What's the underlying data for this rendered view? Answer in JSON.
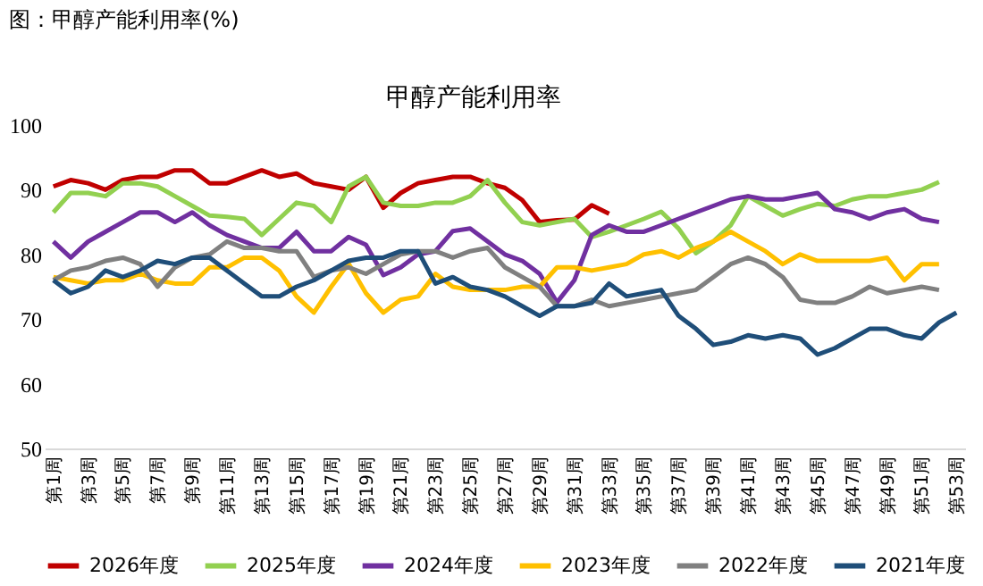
{
  "chart_data": {
    "type": "line",
    "title": "图：甲醇产能利用率(%)",
    "subtitle": "甲醇产能利用率",
    "categories": [
      "第1周",
      null,
      "第3周",
      null,
      "第5周",
      null,
      "第7周",
      null,
      "第9周",
      null,
      "第11周",
      null,
      "第13周",
      null,
      "第15周",
      null,
      "第17周",
      null,
      "第19周",
      null,
      "第21周",
      null,
      "第23周",
      null,
      "第25周",
      null,
      "第27周",
      null,
      "第29周",
      null,
      "第31周",
      null,
      "第33周",
      null,
      "第35周",
      null,
      "第37周",
      null,
      "第39周",
      null,
      "第41周",
      null,
      "第43周",
      null,
      "第45周",
      null,
      "第47周",
      null,
      "第49周",
      null,
      "第51周",
      null,
      "第53周"
    ],
    "ylim": [
      50,
      100
    ],
    "yticks": [
      50,
      60,
      70,
      80,
      90,
      100
    ],
    "grid": false,
    "legend": "bottom",
    "line_style": "solid",
    "marker": "none",
    "series": [
      {
        "name": "2026年度",
        "color": "#c00000",
        "values": [
          90.5,
          91.5,
          91,
          90,
          91.5,
          92,
          92,
          93,
          93,
          91,
          91,
          92,
          93,
          92,
          92.5,
          91,
          90.5,
          90,
          92,
          87.2,
          89.5,
          91,
          91.5,
          92,
          92,
          91,
          90.3,
          88.4,
          85,
          85.3,
          85.4,
          87.6,
          86.3,
          null,
          null,
          null,
          null,
          null,
          null,
          null,
          null,
          null,
          null,
          null,
          null,
          null,
          null,
          null,
          null,
          null,
          null,
          null,
          null
        ]
      },
      {
        "name": "2025年度",
        "color": "#92d050",
        "values": [
          86.5,
          89.5,
          89.5,
          89,
          91,
          91,
          90.5,
          89,
          87.5,
          86,
          85.8,
          85.5,
          83,
          85.5,
          88,
          87.5,
          85,
          90.5,
          92,
          88,
          87.5,
          87.5,
          88,
          88,
          89,
          91.5,
          88,
          85,
          84.5,
          85,
          85.5,
          82.7,
          83.5,
          84.5,
          85.5,
          86.6,
          84,
          80.2,
          82,
          84.5,
          89,
          87.5,
          86,
          87,
          87.8,
          87.5,
          88.5,
          89,
          89,
          89.5,
          90,
          91.2,
          null
        ]
      },
      {
        "name": "2024年度",
        "color": "#7030a0",
        "values": [
          82,
          79.5,
          82,
          83.5,
          85,
          86.5,
          86.5,
          85,
          86.5,
          84.5,
          83,
          82,
          81,
          81,
          83.5,
          80.5,
          80.5,
          82.7,
          81.5,
          76.8,
          78,
          80,
          80.5,
          83.6,
          84,
          82,
          80,
          79,
          77,
          72.6,
          76,
          83,
          84.5,
          83.5,
          83.5,
          84.5,
          85.5,
          86.5,
          87.5,
          88.5,
          89,
          88.5,
          88.5,
          89,
          89.5,
          87,
          86.5,
          85.5,
          86.5,
          87,
          85.5,
          85,
          null
        ]
      },
      {
        "name": "2023年度",
        "color": "#ffc000",
        "values": [
          76.5,
          76,
          75.5,
          76,
          76,
          77,
          76,
          75.5,
          75.5,
          78,
          78,
          79.5,
          79.5,
          77.5,
          73.5,
          71,
          75,
          78.6,
          74,
          71,
          73,
          73.5,
          77,
          75,
          74.5,
          74.5,
          74.5,
          75,
          75,
          78,
          78,
          77.5,
          78,
          78.5,
          80,
          80.5,
          79.5,
          81,
          82,
          83.5,
          82,
          80.5,
          78.5,
          80,
          79,
          79,
          79,
          79,
          79.5,
          76,
          78.5,
          78.5,
          null
        ]
      },
      {
        "name": "2022年度",
        "color": "#808080",
        "values": [
          76,
          77.5,
          78,
          79,
          79.5,
          78.5,
          75,
          78,
          79.5,
          80,
          82,
          81,
          81,
          80.5,
          80.5,
          76.5,
          77.5,
          78,
          77,
          78.5,
          80,
          80.5,
          80.5,
          79.5,
          80.5,
          81,
          78,
          76.5,
          75,
          72,
          72,
          73,
          72,
          72.5,
          73,
          73.5,
          74,
          74.5,
          76.5,
          78.5,
          79.5,
          78.5,
          76.5,
          73,
          72.5,
          72.5,
          73.5,
          75,
          74,
          74.5,
          75,
          74.5,
          null
        ]
      },
      {
        "name": "2021年度",
        "color": "#1f4e79",
        "values": [
          76,
          74,
          75,
          77.5,
          76.5,
          77.5,
          79,
          78.5,
          79.5,
          79.5,
          77.5,
          75.5,
          73.5,
          73.5,
          75,
          76,
          77.5,
          79,
          79.5,
          79.5,
          80.5,
          80.5,
          75.5,
          76.5,
          75,
          74.5,
          73.5,
          72,
          70.5,
          72,
          72,
          72.5,
          75.5,
          73.5,
          74,
          74.5,
          70.5,
          68.5,
          66,
          66.5,
          67.5,
          67,
          67.5,
          67,
          64.5,
          65.5,
          67,
          68.5,
          68.5,
          67.5,
          67,
          69.5,
          71
        ]
      }
    ]
  }
}
